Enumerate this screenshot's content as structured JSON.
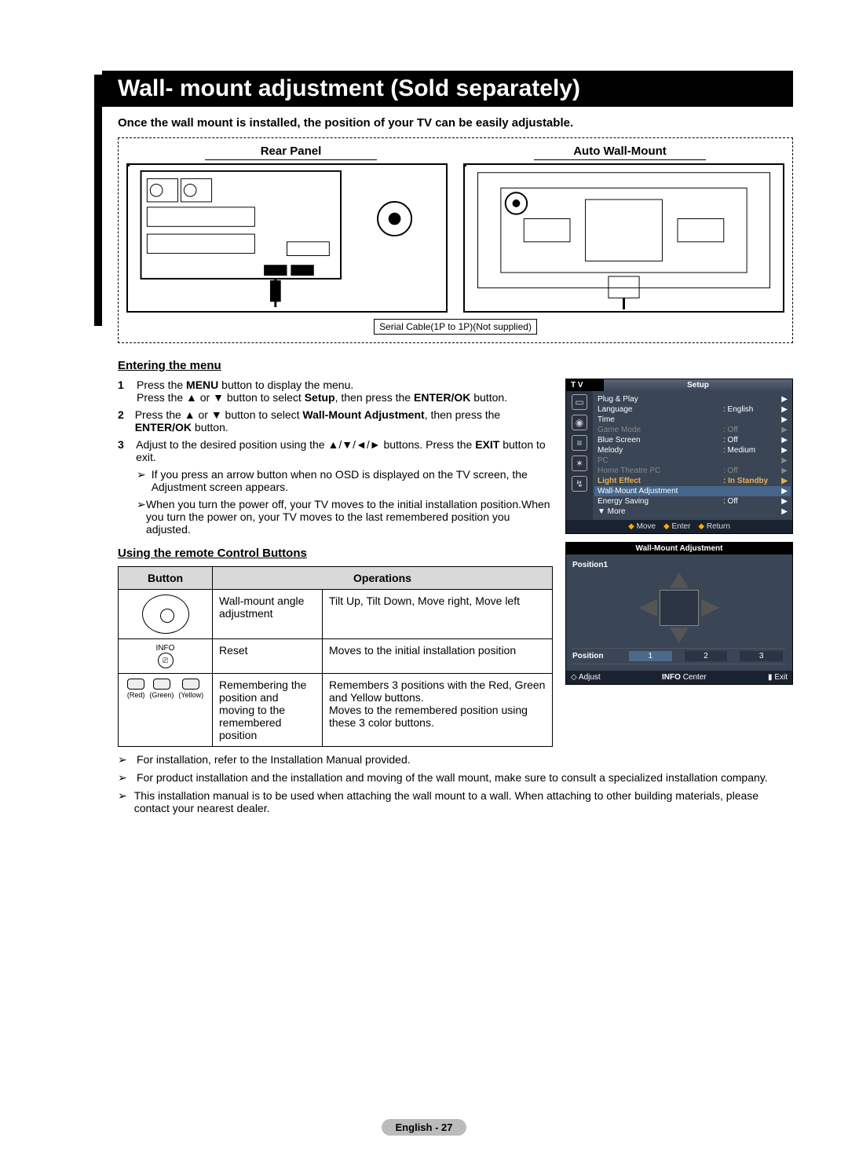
{
  "title": "Wall- mount adjustment (Sold separately)",
  "intro": "Once the wall mount is installed, the position of your TV can be easily adjustable.",
  "panels": {
    "left": "Rear Panel",
    "right": "Auto Wall-Mount"
  },
  "cable_label": "Serial Cable(1P to 1P)(Not supplied)",
  "sections": {
    "entering": "Entering the menu",
    "using": "Using the remote Control Buttons"
  },
  "steps": [
    {
      "n": "1",
      "html": "Press the <b>MENU</b> button to display the menu.<br>Press the ▲ or ▼ button to select <b>Setup</b>, then press the <b>ENTER/OK</b> button."
    },
    {
      "n": "2",
      "html": "Press the ▲ or ▼ button to select <b>Wall-Mount Adjustment</b>, then press the <b>ENTER/OK</b> button."
    },
    {
      "n": "3",
      "html": "Adjust to the desired position using the ▲/▼/◄/► buttons. Press the <b>EXIT</b> button to exit."
    }
  ],
  "step_notes": [
    "If you press an arrow button when no OSD is displayed on the TV screen, the Adjustment screen appears.",
    "When you turn the power off, your TV moves to the initial installation position.When you turn the power on, your TV moves to the last remembered position you adjusted."
  ],
  "table": {
    "headers": [
      "Button",
      "Operations"
    ],
    "rows": [
      {
        "btn": "dpad",
        "op1": "Wall-mount angle adjustment",
        "op2": "Tilt Up, Tilt Down, Move right, Move left"
      },
      {
        "btn": "info",
        "op1": "Reset",
        "op2": "Moves to the initial installation position"
      },
      {
        "btn": "colors",
        "op1": "Remembering the position and moving to the remembered position",
        "op2": "Remembers 3 positions with the Red, Green and Yellow buttons.\nMoves to the remembered position using these 3 color buttons."
      }
    ],
    "info_label": "INFO",
    "color_labels": [
      "(Red)",
      "(Green)",
      "(Yellow)"
    ]
  },
  "bottom_notes": [
    "For installation, refer to the Installation Manual provided.",
    "For product installation and the installation and moving of the wall mount, make sure to consult a specialized installation company.",
    "This installation manual is to be used when attaching the wall mount to a wall. When attaching to other building materials, please contact your nearest dealer."
  ],
  "tv_menu": {
    "tv": "T V",
    "title": "Setup",
    "items": [
      {
        "k": "Plug & Play",
        "v": "",
        "dim": false
      },
      {
        "k": "Language",
        "v": ": English",
        "dim": false
      },
      {
        "k": "Time",
        "v": "",
        "dim": false
      },
      {
        "k": "Game Mode",
        "v": ": Off",
        "dim": true
      },
      {
        "k": "Blue Screen",
        "v": ": Off",
        "dim": false
      },
      {
        "k": "Melody",
        "v": ": Medium",
        "dim": false
      },
      {
        "k": "PC",
        "v": "",
        "dim": true
      },
      {
        "k": "Home Theatre PC",
        "v": ": Off",
        "dim": true
      },
      {
        "k": "Light Effect",
        "v": ": In Standby",
        "hl": true
      },
      {
        "k": "Wall-Mount Adjustment",
        "v": "",
        "sel": true
      },
      {
        "k": "Energy Saving",
        "v": ": Off",
        "dim": false
      },
      {
        "k": "▼ More",
        "v": "",
        "dim": false
      }
    ],
    "footer": [
      "Move",
      "Enter",
      "Return"
    ]
  },
  "adj_panel": {
    "title": "Wall-Mount Adjustment",
    "position_label": "Position1",
    "pos_row_label": "Position",
    "positions": [
      "1",
      "2",
      "3"
    ],
    "footer": {
      "adjust": "Adjust",
      "center": "Center",
      "exit": "Exit",
      "info": "INFO"
    }
  },
  "footer": "English - 27"
}
